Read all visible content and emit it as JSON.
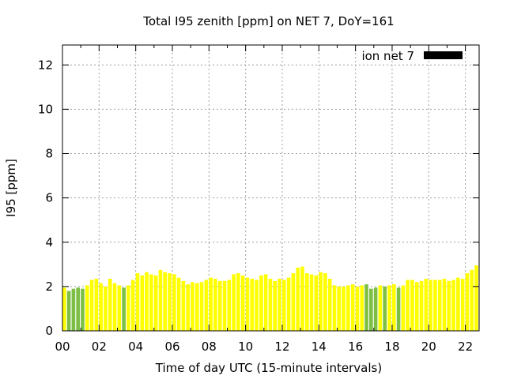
{
  "chart_data": {
    "type": "bar",
    "title": "Total I95 zenith [ppm] on NET 7, DoY=161",
    "xlabel": "Time of day UTC (15-minute intervals)",
    "ylabel": "I95 [ppm]",
    "xlim": [
      0,
      22.75
    ],
    "ylim": [
      0,
      12.9
    ],
    "x_ticks": [
      "00",
      "02",
      "04",
      "06",
      "08",
      "10",
      "12",
      "14",
      "16",
      "18",
      "20",
      "22"
    ],
    "y_ticks": [
      0,
      2,
      4,
      6,
      8,
      10,
      12
    ],
    "grid": true,
    "legend": {
      "position": "top-right",
      "label": "ion net 7",
      "color": "#000000"
    },
    "colors": {
      "yellow": "#ffff00",
      "green": "#7cbf44"
    },
    "bar_width_hours": 0.2,
    "series": [
      {
        "interval_hours": 0.25,
        "values": [
          1.95,
          1.8,
          1.9,
          1.95,
          1.9,
          2.05,
          2.3,
          2.35,
          2.15,
          2.0,
          2.35,
          2.15,
          2.05,
          1.95,
          2.05,
          2.3,
          2.6,
          2.5,
          2.65,
          2.55,
          2.5,
          2.75,
          2.65,
          2.6,
          2.55,
          2.4,
          2.25,
          2.1,
          2.2,
          2.15,
          2.2,
          2.3,
          2.4,
          2.35,
          2.25,
          2.25,
          2.3,
          2.55,
          2.6,
          2.5,
          2.4,
          2.35,
          2.3,
          2.5,
          2.55,
          2.35,
          2.25,
          2.35,
          2.3,
          2.4,
          2.6,
          2.85,
          2.9,
          2.6,
          2.55,
          2.5,
          2.65,
          2.6,
          2.35,
          2.05,
          2.0,
          2.0,
          2.05,
          2.1,
          2.0,
          2.05,
          2.1,
          1.9,
          1.95,
          2.05,
          2.0,
          2.05,
          2.1,
          1.95,
          2.05,
          2.3,
          2.3,
          2.2,
          2.25,
          2.35,
          2.3,
          2.3,
          2.3,
          2.35,
          2.25,
          2.3,
          2.4,
          2.35,
          2.6,
          2.75,
          2.95,
          2.35
        ],
        "colors": [
          "yellow",
          "green",
          "green",
          "green",
          "green",
          "yellow",
          "yellow",
          "yellow",
          "yellow",
          "yellow",
          "yellow",
          "yellow",
          "yellow",
          "green",
          "yellow",
          "yellow",
          "yellow",
          "yellow",
          "yellow",
          "yellow",
          "yellow",
          "yellow",
          "yellow",
          "yellow",
          "yellow",
          "yellow",
          "yellow",
          "yellow",
          "yellow",
          "yellow",
          "yellow",
          "yellow",
          "yellow",
          "yellow",
          "yellow",
          "yellow",
          "yellow",
          "yellow",
          "yellow",
          "yellow",
          "yellow",
          "yellow",
          "yellow",
          "yellow",
          "yellow",
          "yellow",
          "yellow",
          "yellow",
          "yellow",
          "yellow",
          "yellow",
          "yellow",
          "yellow",
          "yellow",
          "yellow",
          "yellow",
          "yellow",
          "yellow",
          "yellow",
          "yellow",
          "yellow",
          "yellow",
          "yellow",
          "yellow",
          "yellow",
          "yellow",
          "green",
          "green",
          "green",
          "yellow",
          "green",
          "yellow",
          "yellow",
          "green",
          "yellow",
          "yellow",
          "yellow",
          "yellow",
          "yellow",
          "yellow",
          "yellow",
          "yellow",
          "yellow",
          "yellow",
          "yellow",
          "yellow",
          "yellow",
          "yellow",
          "yellow",
          "yellow",
          "yellow",
          "yellow"
        ]
      }
    ]
  }
}
